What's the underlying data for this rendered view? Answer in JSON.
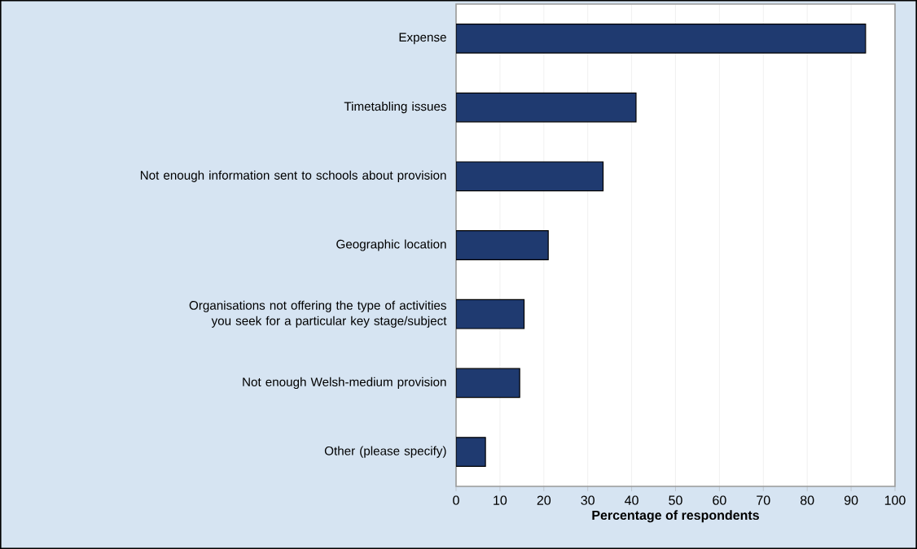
{
  "chart_data": {
    "type": "bar",
    "orientation": "horizontal",
    "categories": [
      "Expense",
      "Timetabling issues",
      "Not enough information sent to schools about provision",
      "Geographic location",
      "Organisations not offering the type of activities you seek for a particular key stage/subject",
      "Not enough Welsh-medium provision",
      "Other (please specify)"
    ],
    "values": [
      93.3,
      41,
      33.5,
      21,
      15.5,
      14.5,
      6.7
    ],
    "color": "#1f3a70",
    "xlabel": "Percentage of respondents",
    "xlim": [
      0,
      100
    ],
    "xticks": [
      0,
      10,
      20,
      30,
      40,
      50,
      60,
      70,
      80,
      90,
      100
    ],
    "grid": "x"
  }
}
